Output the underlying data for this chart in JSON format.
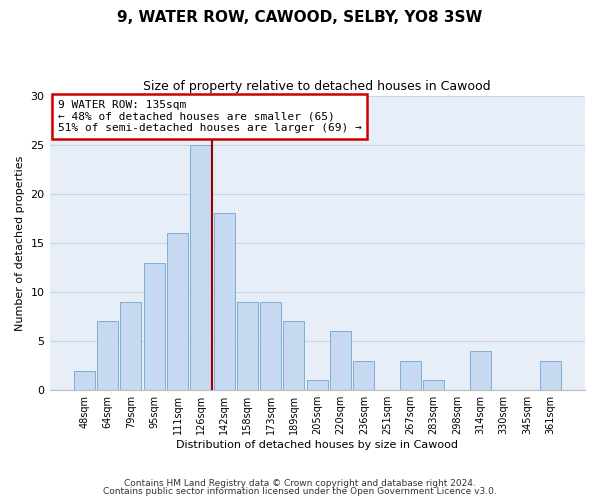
{
  "title": "9, WATER ROW, CAWOOD, SELBY, YO8 3SW",
  "subtitle": "Size of property relative to detached houses in Cawood",
  "xlabel": "Distribution of detached houses by size in Cawood",
  "ylabel": "Number of detached properties",
  "bar_color": "#c6d9f0",
  "bar_edge_color": "#7bafd4",
  "background_color": "#ffffff",
  "plot_bg_color": "#e8eef8",
  "grid_color": "#c8d4e8",
  "categories": [
    "48sqm",
    "64sqm",
    "79sqm",
    "95sqm",
    "111sqm",
    "126sqm",
    "142sqm",
    "158sqm",
    "173sqm",
    "189sqm",
    "205sqm",
    "220sqm",
    "236sqm",
    "251sqm",
    "267sqm",
    "283sqm",
    "298sqm",
    "314sqm",
    "330sqm",
    "345sqm",
    "361sqm"
  ],
  "values": [
    2,
    7,
    9,
    13,
    16,
    25,
    18,
    9,
    9,
    7,
    1,
    6,
    3,
    0,
    3,
    1,
    0,
    4,
    0,
    0,
    3
  ],
  "ylim": [
    0,
    30
  ],
  "yticks": [
    0,
    5,
    10,
    15,
    20,
    25,
    30
  ],
  "subject_line_color": "#990000",
  "annotation_title": "9 WATER ROW: 135sqm",
  "annotation_line1": "← 48% of detached houses are smaller (65)",
  "annotation_line2": "51% of semi-detached houses are larger (69) →",
  "annotation_box_color": "#ffffff",
  "annotation_box_edge_color": "#cc0000",
  "footer1": "Contains HM Land Registry data © Crown copyright and database right 2024.",
  "footer2": "Contains public sector information licensed under the Open Government Licence v3.0."
}
